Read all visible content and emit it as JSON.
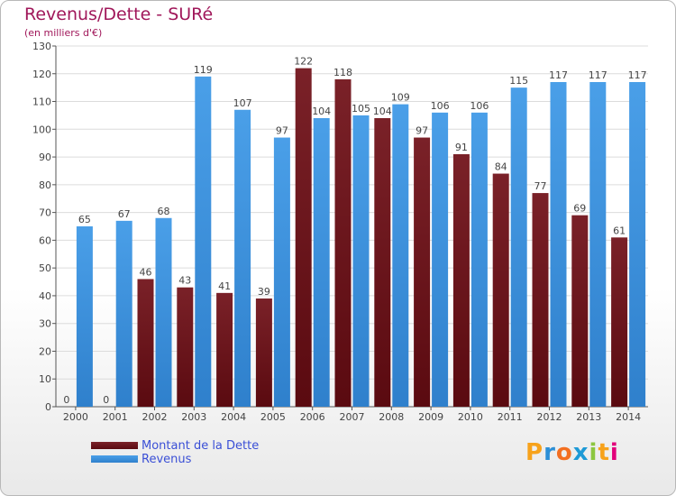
{
  "title": "Revenus/Dette - SURé",
  "subtitle": "(en milliers d'€)",
  "colors": {
    "debt": "#7a2128",
    "debt_dark": "#5a0a10",
    "revenue": "#4a9fe8",
    "revenue_dark": "#2f80cc",
    "grid": "#dcdcdc",
    "axis": "#555555",
    "text": "#444444"
  },
  "chart_data": {
    "type": "bar",
    "title": "Revenus/Dette - SURé",
    "ylabel": "(en milliers d'€)",
    "xlabel": "",
    "categories": [
      "2000",
      "2001",
      "2002",
      "2003",
      "2004",
      "2005",
      "2006",
      "2007",
      "2008",
      "2009",
      "2010",
      "2011",
      "2012",
      "2013",
      "2014"
    ],
    "series": [
      {
        "name": "Montant de la Dette",
        "values": [
          0,
          0,
          46,
          43,
          41,
          39,
          122,
          118,
          104,
          97,
          91,
          84,
          77,
          69,
          61
        ]
      },
      {
        "name": "Revenus",
        "values": [
          65,
          67,
          68,
          119,
          107,
          97,
          104,
          105,
          109,
          106,
          106,
          115,
          117,
          117,
          117
        ]
      }
    ],
    "ylim": [
      0,
      130
    ],
    "yticks": [
      0,
      10,
      20,
      30,
      40,
      50,
      60,
      70,
      80,
      90,
      100,
      110,
      120,
      130
    ],
    "grid": true,
    "legend_position": "bottom-left"
  },
  "legend": [
    {
      "label": "Montant de la Dette"
    },
    {
      "label": "Revenus"
    }
  ],
  "logo": {
    "letters": [
      "P",
      "r",
      "o",
      "x",
      "i",
      "t",
      "i"
    ],
    "colors": [
      "#f7a21b",
      "#2c8fd6",
      "#f36f21",
      "#1e9ad6",
      "#8cc63f",
      "#f7a21b",
      "#e2007a"
    ]
  }
}
